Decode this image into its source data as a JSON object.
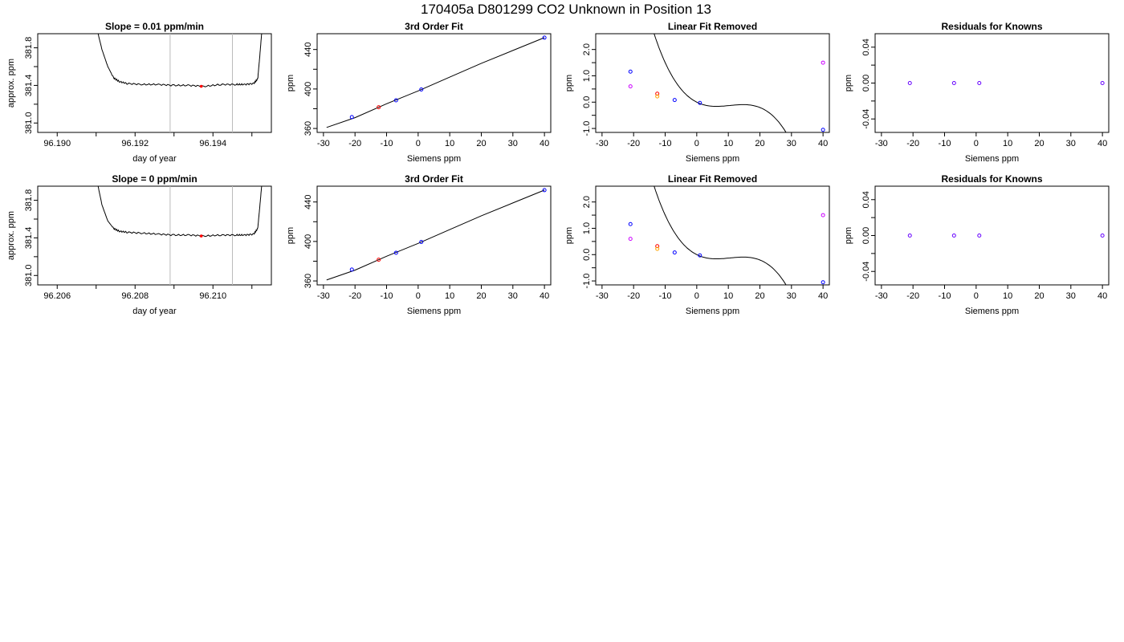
{
  "figure": {
    "title": "170405a     D801299   CO2 Unknown in Position  13"
  },
  "chart_data": [
    {
      "id": "r1_trace",
      "type": "line",
      "title": "Slope =  0.01  ppm/min",
      "xlabel": "day of year",
      "ylabel": "approx. ppm",
      "xlim": [
        96.1895,
        96.1955
      ],
      "ylim": [
        380.9,
        381.95
      ],
      "xticks": [
        96.19,
        96.191,
        96.192,
        96.193,
        96.194,
        96.195
      ],
      "xtick_labels": [
        "96.190",
        "",
        "96.192",
        "",
        "96.194",
        ""
      ],
      "yticks": [
        381.0,
        381.2,
        381.4,
        381.6,
        381.8
      ],
      "ytick_labels": [
        "381.0",
        "",
        "381.4",
        "",
        "381.8"
      ],
      "vlines": [
        96.1929,
        96.1945
      ],
      "highlight": {
        "x": 96.1937,
        "y": 381.39,
        "color": "#ff0000"
      },
      "series": [
        {
          "x": [
            96.19105,
            96.19115,
            96.1913,
            96.19145,
            96.1916,
            96.1918,
            96.1922,
            96.1926,
            96.193,
            96.1934,
            96.1938,
            96.1942,
            96.1946,
            96.1948,
            96.19505,
            96.19515,
            96.1952,
            96.19525
          ],
          "y": [
            381.95,
            381.78,
            381.6,
            381.48,
            381.44,
            381.42,
            381.41,
            381.41,
            381.4,
            381.4,
            381.39,
            381.41,
            381.41,
            381.41,
            381.42,
            381.47,
            381.7,
            381.95
          ]
        }
      ]
    },
    {
      "id": "r1_fit",
      "type": "scatter",
      "title": "3rd Order Fit",
      "xlabel": "Siemens ppm",
      "ylabel": "ppm",
      "xlim": [
        -32,
        42
      ],
      "ylim": [
        356,
        456
      ],
      "xticks": [
        -30,
        -20,
        -10,
        0,
        10,
        20,
        30,
        40
      ],
      "xtick_labels": [
        "-30",
        "-20",
        "-10",
        "0",
        "10",
        "20",
        "30",
        "40"
      ],
      "yticks": [
        360,
        380,
        400,
        420,
        440
      ],
      "ytick_labels": [
        "360",
        "",
        "400",
        "",
        "440"
      ],
      "curve": {
        "x": [
          -29,
          -20,
          -10,
          0,
          10,
          20,
          30,
          40
        ],
        "y": [
          361,
          371,
          385,
          398,
          412,
          426,
          439,
          452
        ]
      },
      "points": [
        {
          "x": -21,
          "y": 371.5,
          "color": "#0000ff"
        },
        {
          "x": -12.5,
          "y": 381.5,
          "color": "#ff0000"
        },
        {
          "x": -7,
          "y": 388.5,
          "color": "#0000ff"
        },
        {
          "x": 1,
          "y": 399.5,
          "color": "#0000ff"
        },
        {
          "x": 40,
          "y": 452,
          "color": "#0000ff"
        }
      ]
    },
    {
      "id": "r1_lin",
      "type": "scatter",
      "title": "Linear Fit Removed",
      "xlabel": "Siemens ppm",
      "ylabel": "ppm",
      "xlim": [
        -32,
        42
      ],
      "ylim": [
        -1.15,
        2.6
      ],
      "xticks": [
        -30,
        -20,
        -10,
        0,
        10,
        20,
        30,
        40
      ],
      "xtick_labels": [
        "-30",
        "-20",
        "-10",
        "0",
        "10",
        "20",
        "30",
        "40"
      ],
      "yticks": [
        -1.0,
        -0.5,
        0.0,
        0.5,
        1.0,
        1.5,
        2.0
      ],
      "ytick_labels": [
        "-1.0",
        "",
        "0.0",
        "",
        "1.0",
        "",
        "2.0"
      ],
      "cubic_coef": [
        0.0,
        -0.06,
        0.00685,
        -0.000218
      ],
      "curve_range": [
        -29,
        40
      ],
      "points": [
        {
          "x": -21,
          "y": 1.16,
          "color": "#0000ff"
        },
        {
          "x": -21,
          "y": 0.6,
          "color": "#cc00ff"
        },
        {
          "x": -12.5,
          "y": 0.32,
          "color": "#ff0000"
        },
        {
          "x": -12.5,
          "y": 0.22,
          "color": "#ffa500"
        },
        {
          "x": -7,
          "y": 0.08,
          "color": "#0000ff"
        },
        {
          "x": 1,
          "y": -0.03,
          "color": "#0000ff"
        },
        {
          "x": 40,
          "y": -1.05,
          "color": "#0000ff"
        },
        {
          "x": 40,
          "y": 1.5,
          "color": "#cc00ff"
        }
      ]
    },
    {
      "id": "r1_res",
      "type": "scatter",
      "title": "Residuals for Knowns",
      "xlabel": "Siemens ppm",
      "ylabel": "ppm",
      "xlim": [
        -32,
        42
      ],
      "ylim": [
        -0.055,
        0.055
      ],
      "xticks": [
        -30,
        -20,
        -10,
        0,
        10,
        20,
        30,
        40
      ],
      "xtick_labels": [
        "-30",
        "-20",
        "-10",
        "0",
        "10",
        "20",
        "30",
        "40"
      ],
      "yticks": [
        -0.04,
        -0.02,
        0.0,
        0.02,
        0.04
      ],
      "ytick_labels": [
        "-0.04",
        "",
        "0.00",
        "",
        "0.04"
      ],
      "points": [
        {
          "x": -21,
          "y": 0.0,
          "color": "#6600ff"
        },
        {
          "x": -7,
          "y": 0.0,
          "color": "#6600ff"
        },
        {
          "x": 1,
          "y": 0.0,
          "color": "#6600ff"
        },
        {
          "x": 40,
          "y": 0.0,
          "color": "#6600ff"
        }
      ]
    },
    {
      "id": "r2_trace",
      "type": "line",
      "title": "Slope =  0  ppm/min",
      "xlabel": "day of year",
      "ylabel": "approx. ppm",
      "xlim": [
        96.2055,
        96.2115
      ],
      "ylim": [
        380.9,
        381.95
      ],
      "xticks": [
        96.206,
        96.207,
        96.208,
        96.209,
        96.21,
        96.211
      ],
      "xtick_labels": [
        "96.206",
        "",
        "96.208",
        "",
        "96.210",
        ""
      ],
      "yticks": [
        381.0,
        381.2,
        381.4,
        381.6,
        381.8
      ],
      "ytick_labels": [
        "381.0",
        "",
        "381.4",
        "",
        "381.8"
      ],
      "vlines": [
        96.2089,
        96.2105
      ],
      "highlight": {
        "x": 96.2097,
        "y": 381.42,
        "color": "#ff0000"
      },
      "series": [
        {
          "x": [
            96.20705,
            96.20715,
            96.2073,
            96.20745,
            96.2076,
            96.2078,
            96.2082,
            96.2086,
            96.209,
            96.2094,
            96.2098,
            96.2102,
            96.2106,
            96.2108,
            96.21105,
            96.21115,
            96.2112,
            96.21125
          ],
          "y": [
            381.95,
            381.75,
            381.58,
            381.5,
            381.47,
            381.46,
            381.45,
            381.44,
            381.43,
            381.43,
            381.42,
            381.43,
            381.43,
            381.43,
            381.44,
            381.5,
            381.72,
            381.95
          ]
        }
      ]
    },
    {
      "id": "r2_fit",
      "type": "scatter",
      "title": "3rd Order Fit",
      "xlabel": "Siemens ppm",
      "ylabel": "ppm",
      "xlim": [
        -32,
        42
      ],
      "ylim": [
        356,
        456
      ],
      "xticks": [
        -30,
        -20,
        -10,
        0,
        10,
        20,
        30,
        40
      ],
      "xtick_labels": [
        "-30",
        "-20",
        "-10",
        "0",
        "10",
        "20",
        "30",
        "40"
      ],
      "yticks": [
        360,
        380,
        400,
        420,
        440
      ],
      "ytick_labels": [
        "360",
        "",
        "400",
        "",
        "440"
      ],
      "curve": {
        "x": [
          -29,
          -20,
          -10,
          0,
          10,
          20,
          30,
          40
        ],
        "y": [
          361,
          371,
          385,
          398,
          412,
          426,
          439,
          452
        ]
      },
      "points": [
        {
          "x": -21,
          "y": 371.5,
          "color": "#0000ff"
        },
        {
          "x": -12.5,
          "y": 381.5,
          "color": "#ff0000"
        },
        {
          "x": -7,
          "y": 388.5,
          "color": "#0000ff"
        },
        {
          "x": 1,
          "y": 399.5,
          "color": "#0000ff"
        },
        {
          "x": 40,
          "y": 452,
          "color": "#0000ff"
        }
      ]
    },
    {
      "id": "r2_lin",
      "type": "scatter",
      "title": "Linear Fit Removed",
      "xlabel": "Siemens ppm",
      "ylabel": "ppm",
      "xlim": [
        -32,
        42
      ],
      "ylim": [
        -1.15,
        2.6
      ],
      "xticks": [
        -30,
        -20,
        -10,
        0,
        10,
        20,
        30,
        40
      ],
      "xtick_labels": [
        "-30",
        "-20",
        "-10",
        "0",
        "10",
        "20",
        "30",
        "40"
      ],
      "yticks": [
        -1.0,
        -0.5,
        0.0,
        0.5,
        1.0,
        1.5,
        2.0
      ],
      "ytick_labels": [
        "-1.0",
        "",
        "0.0",
        "",
        "1.0",
        "",
        "2.0"
      ],
      "cubic_coef": [
        0.0,
        -0.06,
        0.00685,
        -0.000218
      ],
      "curve_range": [
        -29,
        40
      ],
      "points": [
        {
          "x": -21,
          "y": 1.16,
          "color": "#0000ff"
        },
        {
          "x": -21,
          "y": 0.6,
          "color": "#cc00ff"
        },
        {
          "x": -12.5,
          "y": 0.32,
          "color": "#ff0000"
        },
        {
          "x": -12.5,
          "y": 0.22,
          "color": "#ffa500"
        },
        {
          "x": -7,
          "y": 0.08,
          "color": "#0000ff"
        },
        {
          "x": 1,
          "y": -0.03,
          "color": "#0000ff"
        },
        {
          "x": 40,
          "y": -1.05,
          "color": "#0000ff"
        },
        {
          "x": 40,
          "y": 1.5,
          "color": "#cc00ff"
        }
      ]
    },
    {
      "id": "r2_res",
      "type": "scatter",
      "title": "Residuals for Knowns",
      "xlabel": "Siemens ppm",
      "ylabel": "ppm",
      "xlim": [
        -32,
        42
      ],
      "ylim": [
        -0.055,
        0.055
      ],
      "xticks": [
        -30,
        -20,
        -10,
        0,
        10,
        20,
        30,
        40
      ],
      "xtick_labels": [
        "-30",
        "-20",
        "-10",
        "0",
        "10",
        "20",
        "30",
        "40"
      ],
      "yticks": [
        -0.04,
        -0.02,
        0.0,
        0.02,
        0.04
      ],
      "ytick_labels": [
        "-0.04",
        "",
        "0.00",
        "",
        "0.04"
      ],
      "points": [
        {
          "x": -21,
          "y": 0.0,
          "color": "#6600ff"
        },
        {
          "x": -7,
          "y": 0.0,
          "color": "#6600ff"
        },
        {
          "x": 1,
          "y": 0.0,
          "color": "#6600ff"
        },
        {
          "x": 40,
          "y": 0.0,
          "color": "#6600ff"
        }
      ]
    }
  ]
}
